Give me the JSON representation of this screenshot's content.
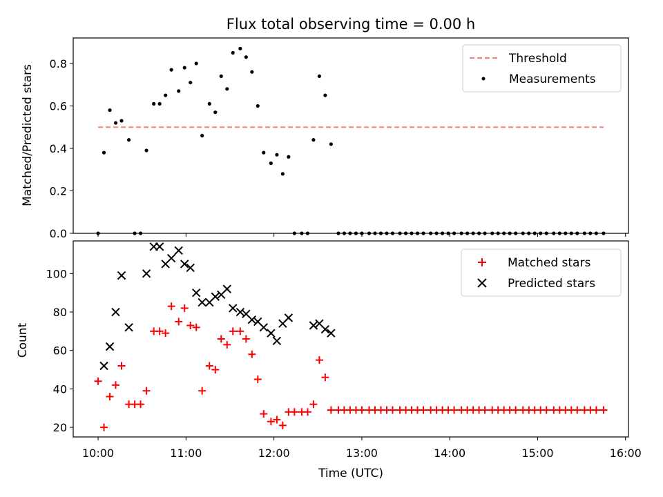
{
  "chart_data": [
    {
      "type": "scatter",
      "title": "Flux total observing time = 0.00 h",
      "xlabel": "",
      "ylabel": "Matched/Predicted stars",
      "ylim": [
        0,
        0.92
      ],
      "yticks": [
        "0.0",
        "0.2",
        "0.4",
        "0.6",
        "0.8"
      ],
      "ytick_values": [
        0,
        0.2,
        0.4,
        0.6,
        0.8
      ],
      "legend_position": "top-right",
      "threshold": {
        "name": "Threshold",
        "value": 0.5,
        "x_range": [
          0,
          345
        ],
        "color": "#ff7f7f"
      },
      "series": [
        {
          "name": "Measurements",
          "color": "#000000",
          "points": [
            [
              0,
              0
            ],
            [
              4,
              0.38
            ],
            [
              8,
              0.58
            ],
            [
              12,
              0.52
            ],
            [
              16,
              0.53
            ],
            [
              21,
              0.44
            ],
            [
              25,
              0
            ],
            [
              29,
              0
            ],
            [
              33,
              0.39
            ],
            [
              38,
              0.61
            ],
            [
              42,
              0.61
            ],
            [
              46,
              0.65
            ],
            [
              50,
              0.77
            ],
            [
              55,
              0.67
            ],
            [
              59,
              0.78
            ],
            [
              63,
              0.71
            ],
            [
              67,
              0.8
            ],
            [
              71,
              0.46
            ],
            [
              76,
              0.61
            ],
            [
              80,
              0.57
            ],
            [
              84,
              0.74
            ],
            [
              88,
              0.68
            ],
            [
              92,
              0.85
            ],
            [
              97,
              0.87
            ],
            [
              101,
              0.83
            ],
            [
              105,
              0.76
            ],
            [
              109,
              0.6
            ],
            [
              113,
              0.38
            ],
            [
              118,
              0.33
            ],
            [
              122,
              0.37
            ],
            [
              126,
              0.28
            ],
            [
              130,
              0.36
            ],
            [
              134,
              0
            ],
            [
              139,
              0
            ],
            [
              143,
              0
            ],
            [
              147,
              0.44
            ],
            [
              151,
              0.74
            ],
            [
              155,
              0.65
            ],
            [
              159,
              0.42
            ],
            [
              164,
              0
            ],
            [
              168,
              0
            ],
            [
              172,
              0
            ],
            [
              176,
              0
            ],
            [
              180,
              0
            ],
            [
              185,
              0
            ],
            [
              189,
              0
            ],
            [
              193,
              0
            ],
            [
              197,
              0
            ],
            [
              201,
              0
            ],
            [
              206,
              0
            ],
            [
              210,
              0
            ],
            [
              214,
              0
            ],
            [
              218,
              0
            ],
            [
              222,
              0
            ],
            [
              227,
              0
            ],
            [
              231,
              0
            ],
            [
              235,
              0
            ],
            [
              239,
              0
            ],
            [
              243,
              0
            ],
            [
              248,
              0
            ],
            [
              252,
              0
            ],
            [
              256,
              0
            ],
            [
              260,
              0
            ],
            [
              264,
              0
            ],
            [
              269,
              0
            ],
            [
              273,
              0
            ],
            [
              277,
              0
            ],
            [
              281,
              0
            ],
            [
              285,
              0
            ],
            [
              290,
              0
            ],
            [
              294,
              0
            ],
            [
              298,
              0
            ],
            [
              302,
              0
            ],
            [
              306,
              0
            ],
            [
              311,
              0
            ],
            [
              315,
              0
            ],
            [
              319,
              0
            ],
            [
              323,
              0
            ],
            [
              327,
              0
            ],
            [
              332,
              0
            ],
            [
              336,
              0
            ],
            [
              340,
              0
            ],
            [
              345,
              0
            ]
          ]
        }
      ]
    },
    {
      "type": "scatter",
      "title": "",
      "xlabel": "Time (UTC)",
      "ylabel": "Count",
      "xlim": [
        -17,
        362
      ],
      "xticks": [
        "10:00",
        "11:00",
        "12:00",
        "13:00",
        "14:00",
        "15:00",
        "16:00"
      ],
      "xtick_values": [
        0,
        60,
        120,
        180,
        240,
        300,
        360
      ],
      "x_note_units": "minutes after 10:00",
      "ylim": [
        15,
        117
      ],
      "yticks": [
        "20",
        "40",
        "60",
        "80",
        "100"
      ],
      "ytick_values": [
        20,
        40,
        60,
        80,
        100
      ],
      "legend_position": "top-right",
      "series": [
        {
          "name": "Matched stars",
          "color": "#ff0000",
          "marker": "plus",
          "points": [
            [
              0,
              44
            ],
            [
              4,
              20
            ],
            [
              8,
              36
            ],
            [
              12,
              42
            ],
            [
              16,
              52
            ],
            [
              21,
              32
            ],
            [
              25,
              32
            ],
            [
              29,
              32
            ],
            [
              33,
              39
            ],
            [
              38,
              70
            ],
            [
              42,
              70
            ],
            [
              46,
              69
            ],
            [
              50,
              83
            ],
            [
              55,
              75
            ],
            [
              59,
              82
            ],
            [
              63,
              73
            ],
            [
              67,
              72
            ],
            [
              71,
              39
            ],
            [
              76,
              52
            ],
            [
              80,
              50
            ],
            [
              84,
              66
            ],
            [
              88,
              63
            ],
            [
              92,
              70
            ],
            [
              97,
              70
            ],
            [
              101,
              66
            ],
            [
              105,
              58
            ],
            [
              109,
              45
            ],
            [
              113,
              27
            ],
            [
              118,
              23
            ],
            [
              122,
              24
            ],
            [
              126,
              21
            ],
            [
              130,
              28
            ],
            [
              134,
              28
            ],
            [
              139,
              28
            ],
            [
              143,
              28
            ],
            [
              147,
              32
            ],
            [
              151,
              55
            ],
            [
              155,
              46
            ],
            [
              159,
              29
            ],
            [
              164,
              29
            ],
            [
              168,
              29
            ],
            [
              172,
              29
            ],
            [
              176,
              29
            ],
            [
              180,
              29
            ],
            [
              185,
              29
            ],
            [
              189,
              29
            ],
            [
              193,
              29
            ],
            [
              197,
              29
            ],
            [
              201,
              29
            ],
            [
              206,
              29
            ],
            [
              210,
              29
            ],
            [
              214,
              29
            ],
            [
              218,
              29
            ],
            [
              222,
              29
            ],
            [
              227,
              29
            ],
            [
              231,
              29
            ],
            [
              235,
              29
            ],
            [
              239,
              29
            ],
            [
              243,
              29
            ],
            [
              248,
              29
            ],
            [
              252,
              29
            ],
            [
              256,
              29
            ],
            [
              260,
              29
            ],
            [
              264,
              29
            ],
            [
              269,
              29
            ],
            [
              273,
              29
            ],
            [
              277,
              29
            ],
            [
              281,
              29
            ],
            [
              285,
              29
            ],
            [
              290,
              29
            ],
            [
              294,
              29
            ],
            [
              298,
              29
            ],
            [
              302,
              29
            ],
            [
              306,
              29
            ],
            [
              311,
              29
            ],
            [
              315,
              29
            ],
            [
              319,
              29
            ],
            [
              323,
              29
            ],
            [
              327,
              29
            ],
            [
              332,
              29
            ],
            [
              336,
              29
            ],
            [
              340,
              29
            ],
            [
              345,
              29
            ]
          ]
        },
        {
          "name": "Predicted stars",
          "color": "#000000",
          "marker": "x",
          "points": [
            [
              4,
              52
            ],
            [
              8,
              62
            ],
            [
              12,
              80
            ],
            [
              16,
              99
            ],
            [
              21,
              72
            ],
            [
              33,
              100
            ],
            [
              38,
              114
            ],
            [
              42,
              114
            ],
            [
              46,
              105
            ],
            [
              50,
              108
            ],
            [
              55,
              112
            ],
            [
              59,
              105
            ],
            [
              63,
              103
            ],
            [
              67,
              90
            ],
            [
              71,
              85
            ],
            [
              76,
              85
            ],
            [
              80,
              88
            ],
            [
              84,
              89
            ],
            [
              88,
              92
            ],
            [
              92,
              82
            ],
            [
              97,
              80
            ],
            [
              101,
              79
            ],
            [
              105,
              76
            ],
            [
              109,
              75
            ],
            [
              113,
              72
            ],
            [
              118,
              69
            ],
            [
              122,
              65
            ],
            [
              126,
              74
            ],
            [
              130,
              77
            ],
            [
              147,
              73
            ],
            [
              151,
              74
            ],
            [
              155,
              71
            ],
            [
              159,
              69
            ]
          ]
        }
      ]
    }
  ]
}
